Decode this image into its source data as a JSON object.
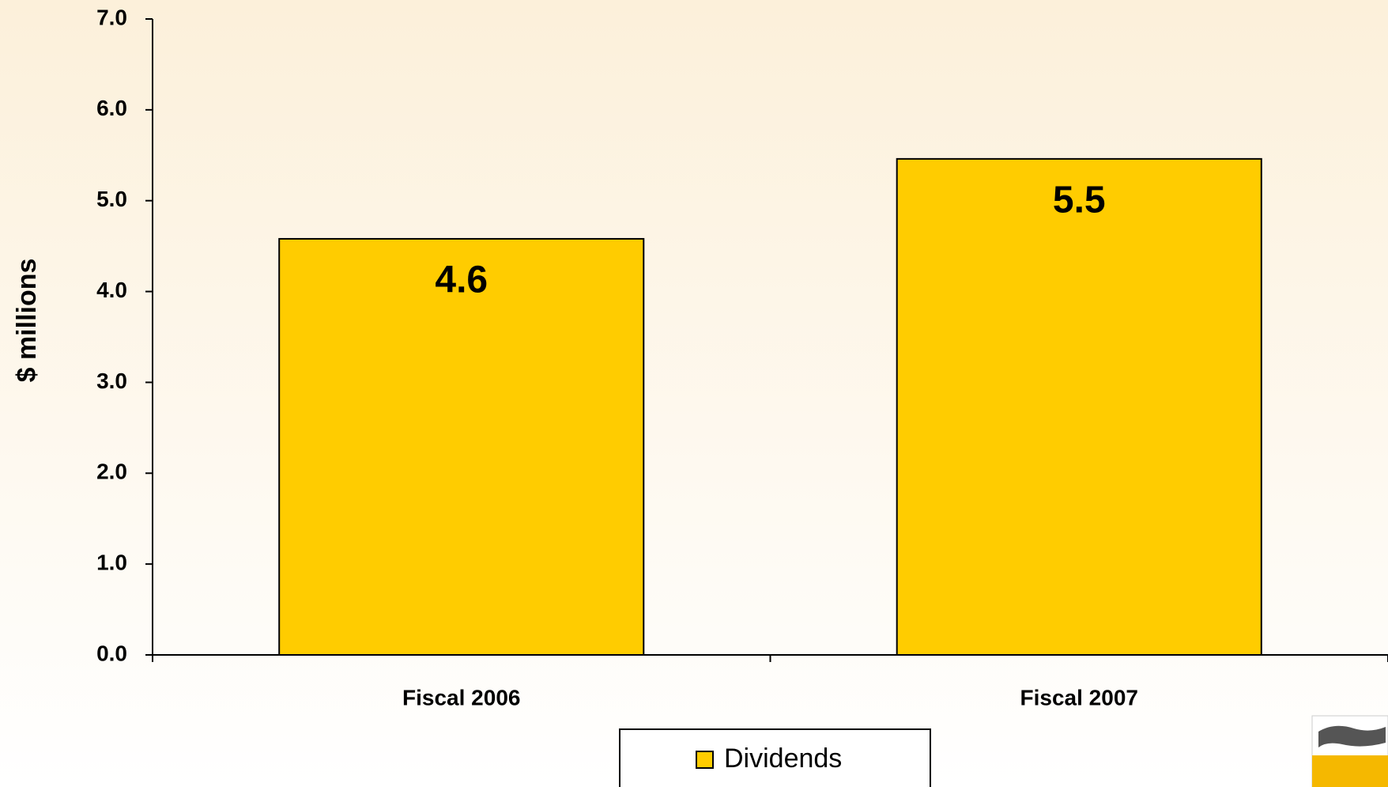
{
  "chart_data": {
    "type": "bar",
    "ylabel": "$ millions",
    "categories": [
      "Fiscal 2006",
      "Fiscal 2007"
    ],
    "series": [
      {
        "name": "Dividends",
        "color": "#ffcc00",
        "values": [
          4.58,
          5.46
        ],
        "value_labels": [
          "4.6",
          "5.5"
        ]
      }
    ],
    "ylim": [
      0,
      7
    ],
    "yticks": [
      {
        "value": 0,
        "label": "0.0"
      },
      {
        "value": 1,
        "label": "1.0"
      },
      {
        "value": 2,
        "label": "2.0"
      },
      {
        "value": 3,
        "label": "3.0"
      },
      {
        "value": 4,
        "label": "4.0"
      },
      {
        "value": 5,
        "label": "5.0"
      },
      {
        "value": 6,
        "label": "6.0"
      },
      {
        "value": 7,
        "label": "7.0"
      }
    ],
    "legend": "bottom"
  }
}
